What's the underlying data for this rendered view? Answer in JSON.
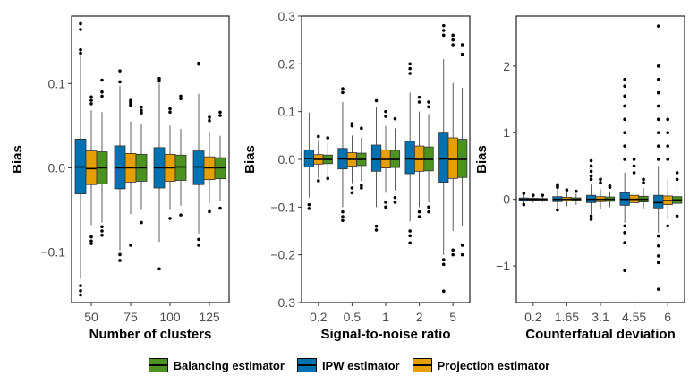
{
  "chart_data": [
    {
      "type": "box",
      "xlabel": "Number of clusters",
      "ylabel": "Bias",
      "categories": [
        "50",
        "75",
        "100",
        "125"
      ],
      "yticks": [
        0.1,
        0.0,
        -0.1
      ],
      "ytick_labels": [
        "0.1",
        "0.0",
        "−0.1"
      ],
      "ylim": [
        -0.16,
        0.18
      ],
      "series": [
        {
          "name": "IPW estimator",
          "color": "#0072b2",
          "boxes": [
            {
              "min": -0.132,
              "q1": -0.031,
              "median": 0.001,
              "q3": 0.034,
              "max": 0.133,
              "outliers": [
                0.171,
                0.164,
                0.14,
                0.136,
                -0.14,
                -0.146,
                -0.151
              ]
            },
            {
              "min": -0.098,
              "q1": -0.025,
              "median": 0.0,
              "q3": 0.026,
              "max": 0.097,
              "outliers": [
                0.115,
                0.102,
                -0.103,
                -0.11
              ]
            },
            {
              "min": -0.088,
              "q1": -0.024,
              "median": 0.0,
              "q3": 0.024,
              "max": 0.1,
              "outliers": [
                0.106,
                0.103,
                -0.12
              ]
            },
            {
              "min": -0.078,
              "q1": -0.02,
              "median": 0.001,
              "q3": 0.02,
              "max": 0.088,
              "outliers": [
                0.124,
                0.123,
                -0.085,
                -0.092
              ]
            }
          ]
        },
        {
          "name": "Projection estimator",
          "color": "#e69f00",
          "boxes": [
            {
              "min": -0.068,
              "q1": -0.02,
              "median": -0.001,
              "q3": 0.02,
              "max": 0.068,
              "outliers": [
                0.084,
                0.08,
                0.076,
                -0.082,
                -0.087,
                -0.09
              ]
            },
            {
              "min": -0.055,
              "q1": -0.017,
              "median": 0.0,
              "q3": 0.017,
              "max": 0.055,
              "outliers": [
                0.08,
                0.078,
                0.076,
                0.074,
                -0.092
              ]
            },
            {
              "min": -0.05,
              "q1": -0.016,
              "median": 0.0,
              "q3": 0.016,
              "max": 0.05,
              "outliers": [
                0.07,
                0.066,
                -0.06
              ]
            },
            {
              "min": -0.042,
              "q1": -0.014,
              "median": 0.0,
              "q3": 0.013,
              "max": 0.042,
              "outliers": [
                0.06,
                0.056,
                -0.052
              ]
            }
          ]
        },
        {
          "name": "Balancing estimator",
          "color": "#4d9221",
          "boxes": [
            {
              "min": -0.065,
              "q1": -0.019,
              "median": 0.0,
              "q3": 0.019,
              "max": 0.066,
              "outliers": [
                0.104,
                0.09,
                0.085,
                -0.07,
                -0.075,
                -0.08
              ]
            },
            {
              "min": -0.05,
              "q1": -0.016,
              "median": 0.0,
              "q3": 0.016,
              "max": 0.052,
              "outliers": [
                0.072,
                0.068,
                0.065,
                -0.065
              ]
            },
            {
              "min": -0.045,
              "q1": -0.015,
              "median": 0.001,
              "q3": 0.015,
              "max": 0.046,
              "outliers": [
                0.085,
                0.082,
                -0.056
              ]
            },
            {
              "min": -0.04,
              "q1": -0.013,
              "median": 0.0,
              "q3": 0.012,
              "max": 0.038,
              "outliers": [
                0.066,
                0.062,
                -0.048
              ]
            }
          ]
        }
      ]
    },
    {
      "type": "box",
      "xlabel": "Signal-to-noise ratio",
      "ylabel": "Bias",
      "categories": [
        "0.2",
        "0.5",
        "1",
        "2",
        "5"
      ],
      "yticks": [
        0.3,
        0.2,
        0.1,
        0.0,
        -0.1,
        -0.2,
        -0.3
      ],
      "ytick_labels": [
        "0.3",
        "0.2",
        "0.1",
        "0.0",
        "−0.1",
        "−0.2",
        "−0.3"
      ],
      "ylim": [
        -0.3,
        0.3
      ],
      "series": [
        {
          "name": "IPW estimator",
          "color": "#0072b2",
          "boxes": [
            {
              "min": -0.08,
              "q1": -0.016,
              "median": 0.002,
              "q3": 0.02,
              "max": 0.098,
              "outliers": [
                -0.095,
                -0.103
              ]
            },
            {
              "min": -0.1,
              "q1": -0.02,
              "median": 0.001,
              "q3": 0.023,
              "max": 0.12,
              "outliers": [
                0.148,
                0.14,
                -0.11,
                -0.12,
                -0.128
              ]
            },
            {
              "min": -0.1,
              "q1": -0.025,
              "median": 0.0,
              "q3": 0.03,
              "max": 0.11,
              "outliers": [
                0.123,
                -0.14,
                -0.148
              ]
            },
            {
              "min": -0.13,
              "q1": -0.03,
              "median": 0.001,
              "q3": 0.038,
              "max": 0.14,
              "outliers": [
                0.2,
                0.19,
                0.18,
                -0.15,
                -0.16,
                -0.175
              ]
            },
            {
              "min": -0.2,
              "q1": -0.048,
              "median": 0.001,
              "q3": 0.055,
              "max": 0.21,
              "outliers": [
                0.28,
                0.27,
                0.26,
                -0.21,
                -0.22,
                -0.276
              ]
            }
          ]
        },
        {
          "name": "Projection estimator",
          "color": "#e69f00",
          "boxes": [
            {
              "min": -0.04,
              "q1": -0.01,
              "median": 0.0,
              "q3": 0.01,
              "max": 0.04,
              "outliers": [
                0.048,
                -0.045
              ]
            },
            {
              "min": -0.05,
              "q1": -0.014,
              "median": 0.0,
              "q3": 0.014,
              "max": 0.05,
              "outliers": [
                0.075,
                0.07,
                -0.06,
                -0.07
              ]
            },
            {
              "min": -0.07,
              "q1": -0.018,
              "median": 0.0,
              "q3": 0.02,
              "max": 0.07,
              "outliers": [
                0.1,
                0.09,
                -0.09,
                -0.1
              ]
            },
            {
              "min": -0.1,
              "q1": -0.025,
              "median": 0.0,
              "q3": 0.028,
              "max": 0.1,
              "outliers": [
                0.13,
                0.12,
                -0.11,
                -0.12
              ]
            },
            {
              "min": -0.15,
              "q1": -0.04,
              "median": 0.0,
              "q3": 0.045,
              "max": 0.16,
              "outliers": [
                0.26,
                0.25,
                0.24,
                -0.19,
                -0.2
              ]
            }
          ]
        },
        {
          "name": "Balancing estimator",
          "color": "#4d9221",
          "boxes": [
            {
              "min": -0.035,
              "q1": -0.009,
              "median": 0.0,
              "q3": 0.009,
              "max": 0.035,
              "outliers": [
                0.045,
                -0.04
              ]
            },
            {
              "min": -0.045,
              "q1": -0.013,
              "median": 0.0,
              "q3": 0.013,
              "max": 0.045,
              "outliers": [
                0.065,
                -0.055,
                -0.06
              ]
            },
            {
              "min": -0.065,
              "q1": -0.017,
              "median": 0.0,
              "q3": 0.019,
              "max": 0.065,
              "outliers": [
                0.085,
                -0.08,
                -0.09
              ]
            },
            {
              "min": -0.09,
              "q1": -0.024,
              "median": 0.0,
              "q3": 0.026,
              "max": 0.095,
              "outliers": [
                0.12,
                0.11,
                -0.1,
                -0.11
              ]
            },
            {
              "min": -0.14,
              "q1": -0.038,
              "median": 0.0,
              "q3": 0.042,
              "max": 0.15,
              "outliers": [
                0.24,
                0.22,
                -0.18,
                -0.2
              ]
            }
          ]
        }
      ]
    },
    {
      "type": "box",
      "xlabel": "Counterfatual deviation",
      "ylabel": "Bias",
      "categories": [
        "0.2",
        "1.65",
        "3.1",
        "4.55",
        "6"
      ],
      "yticks": [
        2,
        1,
        0,
        -1
      ],
      "ytick_labels": [
        "2",
        "1",
        "0",
        "−1"
      ],
      "ylim": [
        -1.55,
        2.75
      ],
      "series": [
        {
          "name": "IPW estimator",
          "color": "#0072b2",
          "boxes": [
            {
              "min": -0.07,
              "q1": -0.02,
              "median": 0.0,
              "q3": 0.02,
              "max": 0.07,
              "outliers": [
                0.09,
                -0.08
              ]
            },
            {
              "min": -0.15,
              "q1": -0.035,
              "median": 0.0,
              "q3": 0.04,
              "max": 0.15,
              "outliers": [
                0.22,
                0.2,
                0.18,
                -0.16
              ]
            },
            {
              "min": -0.22,
              "q1": -0.05,
              "median": 0.0,
              "q3": 0.06,
              "max": 0.22,
              "outliers": [
                0.58,
                0.5,
                0.42,
                0.35,
                0.3,
                -0.25,
                -0.3
              ]
            },
            {
              "min": -0.35,
              "q1": -0.09,
              "median": 0.0,
              "q3": 0.1,
              "max": 0.4,
              "outliers": [
                1.8,
                1.7,
                1.55,
                1.4,
                1.2,
                1.0,
                0.8,
                0.6,
                -0.4,
                -0.5,
                -0.65,
                -1.07
              ]
            },
            {
              "min": -0.5,
              "q1": -0.13,
              "median": -0.05,
              "q3": 0.06,
              "max": 0.5,
              "outliers": [
                2.6,
                2.0,
                1.8,
                1.6,
                1.4,
                1.2,
                1.0,
                0.8,
                0.6,
                -0.55,
                -0.7,
                -0.85,
                -0.95,
                -1.35
              ]
            }
          ]
        },
        {
          "name": "Projection estimator",
          "color": "#e69f00",
          "boxes": [
            {
              "min": -0.05,
              "q1": -0.015,
              "median": 0.0,
              "q3": 0.015,
              "max": 0.05,
              "outliers": [
                0.06
              ]
            },
            {
              "min": -0.1,
              "q1": -0.025,
              "median": 0.0,
              "q3": 0.03,
              "max": 0.1,
              "outliers": [
                0.14
              ]
            },
            {
              "min": -0.15,
              "q1": -0.035,
              "median": 0.0,
              "q3": 0.04,
              "max": 0.15,
              "outliers": [
                0.3,
                0.25
              ]
            },
            {
              "min": -0.2,
              "q1": -0.05,
              "median": 0.0,
              "q3": 0.06,
              "max": 0.22,
              "outliers": [
                0.6,
                0.5,
                0.4
              ]
            },
            {
              "min": -0.3,
              "q1": -0.08,
              "median": -0.02,
              "q3": 0.05,
              "max": 0.3,
              "outliers": [
                1.2,
                1.0,
                0.8,
                0.6,
                -0.4
              ]
            }
          ]
        },
        {
          "name": "Balancing estimator",
          "color": "#4d9221",
          "boxes": [
            {
              "min": -0.04,
              "q1": -0.012,
              "median": 0.0,
              "q3": 0.012,
              "max": 0.04,
              "outliers": [
                0.06
              ]
            },
            {
              "min": -0.08,
              "q1": -0.02,
              "median": 0.0,
              "q3": 0.022,
              "max": 0.08,
              "outliers": [
                0.12
              ]
            },
            {
              "min": -0.12,
              "q1": -0.03,
              "median": 0.0,
              "q3": 0.035,
              "max": 0.12,
              "outliers": [
                0.2,
                0.18
              ]
            },
            {
              "min": -0.15,
              "q1": -0.04,
              "median": 0.0,
              "q3": 0.045,
              "max": 0.17,
              "outliers": [
                0.3,
                0.25
              ]
            },
            {
              "min": -0.2,
              "q1": -0.06,
              "median": -0.01,
              "q3": 0.04,
              "max": 0.2,
              "outliers": [
                0.4,
                0.3,
                -0.25
              ]
            }
          ]
        }
      ]
    }
  ],
  "legend": [
    {
      "label": "Balancing estimator",
      "color": "#4d9221"
    },
    {
      "label": "IPW estimator",
      "color": "#0072b2"
    },
    {
      "label": "Projection estimator",
      "color": "#e69f00"
    }
  ]
}
